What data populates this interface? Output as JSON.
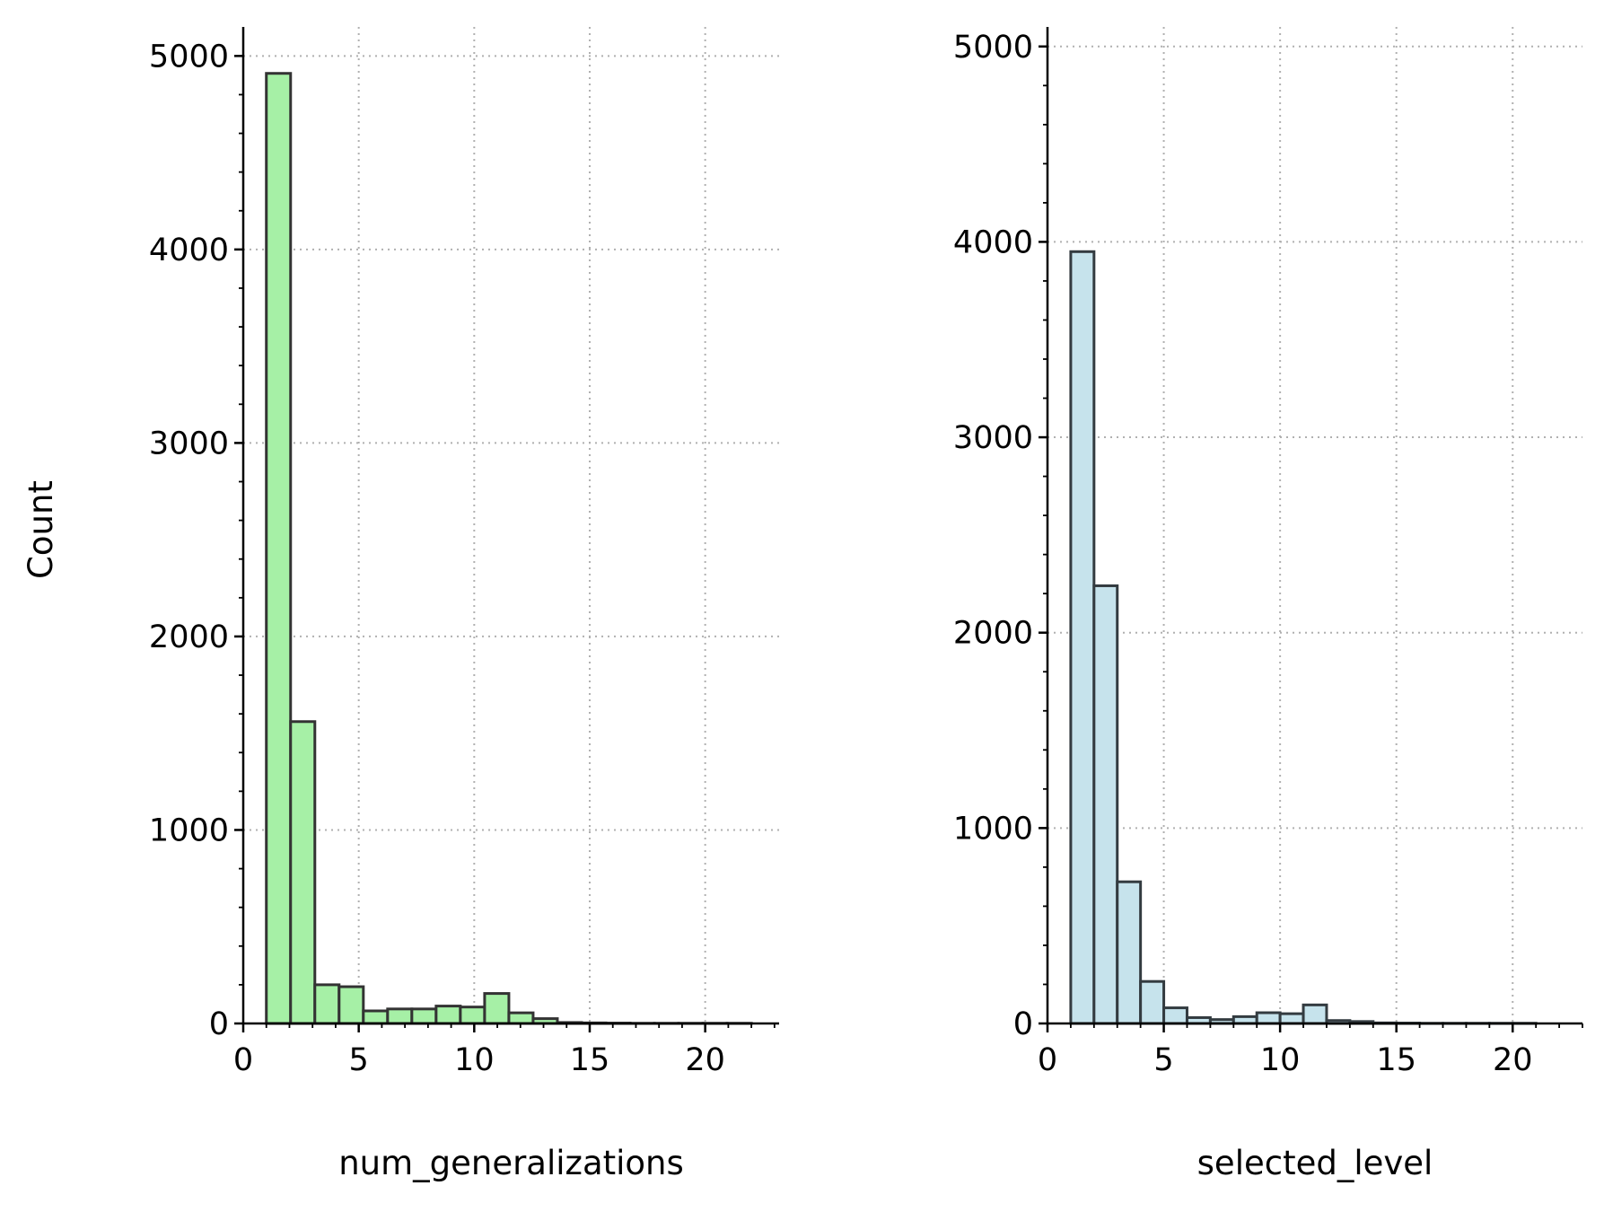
{
  "figure": {
    "ylabel": "Count"
  },
  "chart_data": [
    {
      "type": "bar",
      "xlabel": "num_generalizations",
      "ylabel": "Count",
      "xlim": [
        0,
        23.2
      ],
      "ylim": [
        0,
        5150
      ],
      "xticks": [
        0,
        5,
        10,
        15,
        20
      ],
      "yticks": [
        0,
        1000,
        2000,
        3000,
        4000,
        5000
      ],
      "xtick_labels": [
        "0",
        "5",
        "10",
        "15",
        "20"
      ],
      "ytick_labels": [
        "0",
        "1000",
        "2000",
        "3000",
        "4000",
        "5000"
      ],
      "grid": true,
      "color": "#a6f0a6",
      "edge_color": "#333333",
      "bins": [
        {
          "x0": 1.0,
          "x1": 2.05,
          "count": 4910
        },
        {
          "x0": 2.05,
          "x1": 3.1,
          "count": 1560
        },
        {
          "x0": 3.1,
          "x1": 4.15,
          "count": 200
        },
        {
          "x0": 4.15,
          "x1": 5.2,
          "count": 190
        },
        {
          "x0": 5.2,
          "x1": 6.25,
          "count": 65
        },
        {
          "x0": 6.25,
          "x1": 7.3,
          "count": 75
        },
        {
          "x0": 7.3,
          "x1": 8.35,
          "count": 75
        },
        {
          "x0": 8.35,
          "x1": 9.4,
          "count": 90
        },
        {
          "x0": 9.4,
          "x1": 10.45,
          "count": 85
        },
        {
          "x0": 10.45,
          "x1": 11.5,
          "count": 155
        },
        {
          "x0": 11.5,
          "x1": 12.55,
          "count": 55
        },
        {
          "x0": 12.55,
          "x1": 13.6,
          "count": 25
        },
        {
          "x0": 13.6,
          "x1": 14.65,
          "count": 5
        },
        {
          "x0": 14.65,
          "x1": 15.7,
          "count": 3
        },
        {
          "x0": 15.7,
          "x1": 16.75,
          "count": 2
        },
        {
          "x0": 16.75,
          "x1": 17.8,
          "count": 1
        },
        {
          "x0": 17.8,
          "x1": 18.85,
          "count": 1
        },
        {
          "x0": 18.85,
          "x1": 19.9,
          "count": 1
        },
        {
          "x0": 19.9,
          "x1": 20.95,
          "count": 1
        },
        {
          "x0": 20.95,
          "x1": 22.0,
          "count": 1
        }
      ]
    },
    {
      "type": "bar",
      "xlabel": "selected_level",
      "ylabel": "",
      "xlim": [
        0,
        23.0
      ],
      "ylim": [
        0,
        5100
      ],
      "xticks": [
        0,
        5,
        10,
        15,
        20
      ],
      "yticks": [
        0,
        1000,
        2000,
        3000,
        4000,
        5000
      ],
      "xtick_labels": [
        "0",
        "5",
        "10",
        "15",
        "20"
      ],
      "ytick_labels": [
        "0",
        "1000",
        "2000",
        "3000",
        "4000",
        "5000"
      ],
      "grid": true,
      "color": "#c6e3ec",
      "edge_color": "#333b40",
      "bins": [
        {
          "x0": 1.0,
          "x1": 2.0,
          "count": 3950
        },
        {
          "x0": 2.0,
          "x1": 3.0,
          "count": 2240
        },
        {
          "x0": 3.0,
          "x1": 4.0,
          "count": 725
        },
        {
          "x0": 4.0,
          "x1": 5.0,
          "count": 215
        },
        {
          "x0": 5.0,
          "x1": 6.0,
          "count": 80
        },
        {
          "x0": 6.0,
          "x1": 7.0,
          "count": 30
        },
        {
          "x0": 7.0,
          "x1": 8.0,
          "count": 20
        },
        {
          "x0": 8.0,
          "x1": 9.0,
          "count": 35
        },
        {
          "x0": 9.0,
          "x1": 10.0,
          "count": 55
        },
        {
          "x0": 10.0,
          "x1": 11.0,
          "count": 50
        },
        {
          "x0": 11.0,
          "x1": 12.0,
          "count": 95
        },
        {
          "x0": 12.0,
          "x1": 13.0,
          "count": 15
        },
        {
          "x0": 13.0,
          "x1": 14.0,
          "count": 10
        },
        {
          "x0": 14.0,
          "x1": 15.0,
          "count": 3
        },
        {
          "x0": 15.0,
          "x1": 16.0,
          "count": 2
        },
        {
          "x0": 16.0,
          "x1": 17.0,
          "count": 1
        },
        {
          "x0": 17.0,
          "x1": 18.0,
          "count": 1
        },
        {
          "x0": 18.0,
          "x1": 19.0,
          "count": 1
        },
        {
          "x0": 19.0,
          "x1": 20.0,
          "count": 1
        },
        {
          "x0": 20.0,
          "x1": 21.0,
          "count": 1
        }
      ]
    }
  ]
}
